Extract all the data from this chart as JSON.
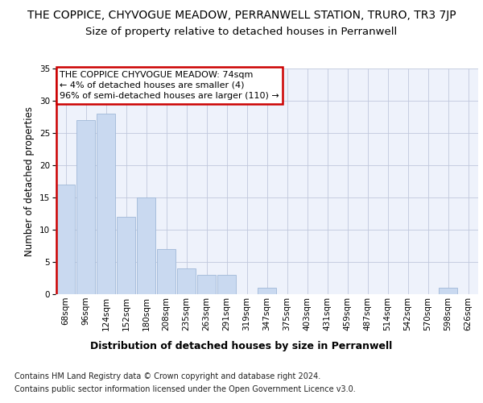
{
  "title": "THE COPPICE, CHYVOGUE MEADOW, PERRANWELL STATION, TRURO, TR3 7JP",
  "subtitle": "Size of property relative to detached houses in Perranwell",
  "xlabel": "Distribution of detached houses by size in Perranwell",
  "ylabel": "Number of detached properties",
  "categories": [
    "68sqm",
    "96sqm",
    "124sqm",
    "152sqm",
    "180sqm",
    "208sqm",
    "235sqm",
    "263sqm",
    "291sqm",
    "319sqm",
    "347sqm",
    "375sqm",
    "403sqm",
    "431sqm",
    "459sqm",
    "487sqm",
    "514sqm",
    "542sqm",
    "570sqm",
    "598sqm",
    "626sqm"
  ],
  "values": [
    17,
    27,
    28,
    12,
    15,
    7,
    4,
    3,
    3,
    0,
    1,
    0,
    0,
    0,
    0,
    0,
    0,
    0,
    0,
    1,
    0
  ],
  "bar_color": "#c9d9f0",
  "bar_edge_color": "#a0b8d8",
  "red_line_index": 0,
  "red_line_color": "#cc0000",
  "ylim": [
    0,
    35
  ],
  "yticks": [
    0,
    5,
    10,
    15,
    20,
    25,
    30,
    35
  ],
  "annotation_title": "THE COPPICE CHYVOGUE MEADOW: 74sqm",
  "annotation_line1": "← 4% of detached houses are smaller (4)",
  "annotation_line2": "96% of semi-detached houses are larger (110) →",
  "annotation_box_color": "#ffffff",
  "annotation_border_color": "#cc0000",
  "footer1": "Contains HM Land Registry data © Crown copyright and database right 2024.",
  "footer2": "Contains public sector information licensed under the Open Government Licence v3.0.",
  "plot_bg_color": "#eef2fb",
  "grid_color": "#c0c8dc",
  "title_fontsize": 10,
  "subtitle_fontsize": 9.5,
  "xlabel_fontsize": 9,
  "ylabel_fontsize": 8.5,
  "tick_fontsize": 7.5,
  "annotation_fontsize": 8,
  "footer_fontsize": 7
}
